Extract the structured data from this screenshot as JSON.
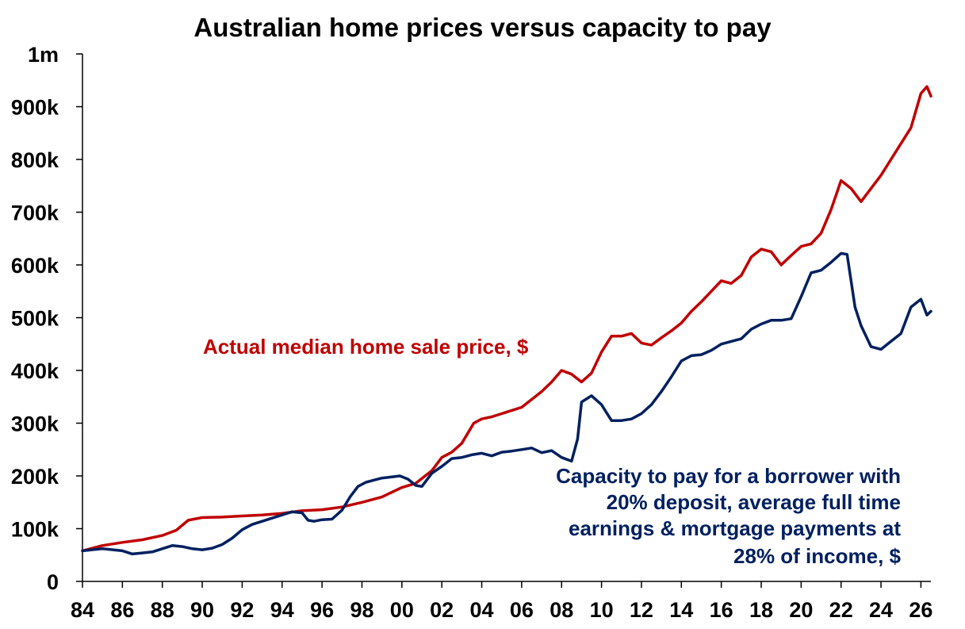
{
  "chart_data": {
    "type": "line",
    "title": "Australian home prices versus capacity to pay",
    "xlabel": "",
    "ylabel": "",
    "xlim": [
      1984,
      2026.5
    ],
    "ylim": [
      0,
      1000000
    ],
    "grid": false,
    "x_tick_labels": [
      "84",
      "86",
      "88",
      "90",
      "92",
      "94",
      "96",
      "98",
      "00",
      "02",
      "04",
      "06",
      "08",
      "10",
      "12",
      "14",
      "16",
      "18",
      "20",
      "22",
      "24",
      "26"
    ],
    "x_tick_values": [
      1984,
      1986,
      1988,
      1990,
      1992,
      1994,
      1996,
      1998,
      2000,
      2002,
      2004,
      2006,
      2008,
      2010,
      2012,
      2014,
      2016,
      2018,
      2020,
      2022,
      2024,
      2026
    ],
    "y_tick_labels": [
      "0",
      "100k",
      "200k",
      "300k",
      "400k",
      "500k",
      "600k",
      "700k",
      "800k",
      "900k",
      "1m"
    ],
    "y_tick_values": [
      0,
      100000,
      200000,
      300000,
      400000,
      500000,
      600000,
      700000,
      800000,
      900000,
      1000000
    ],
    "series": [
      {
        "name": "Actual median home sale price, $",
        "color": "#c00000",
        "points": [
          [
            1984.0,
            58000
          ],
          [
            1985.0,
            68000
          ],
          [
            1986.0,
            74000
          ],
          [
            1987.0,
            79000
          ],
          [
            1988.0,
            87000
          ],
          [
            1988.7,
            97000
          ],
          [
            1989.3,
            116000
          ],
          [
            1990.0,
            121000
          ],
          [
            1991.0,
            122000
          ],
          [
            1992.0,
            124000
          ],
          [
            1993.0,
            126000
          ],
          [
            1994.0,
            129000
          ],
          [
            1995.0,
            134000
          ],
          [
            1996.0,
            136000
          ],
          [
            1997.0,
            141000
          ],
          [
            1998.0,
            150000
          ],
          [
            1999.0,
            160000
          ],
          [
            2000.0,
            178000
          ],
          [
            2000.7,
            186000
          ],
          [
            2001.5,
            210000
          ],
          [
            2002.0,
            235000
          ],
          [
            2002.5,
            245000
          ],
          [
            2003.0,
            262000
          ],
          [
            2003.6,
            300000
          ],
          [
            2004.0,
            308000
          ],
          [
            2004.5,
            312000
          ],
          [
            2005.0,
            318000
          ],
          [
            2006.0,
            330000
          ],
          [
            2007.0,
            360000
          ],
          [
            2007.5,
            378000
          ],
          [
            2008.0,
            400000
          ],
          [
            2008.5,
            393000
          ],
          [
            2009.0,
            378000
          ],
          [
            2009.5,
            395000
          ],
          [
            2010.0,
            435000
          ],
          [
            2010.5,
            465000
          ],
          [
            2011.0,
            465000
          ],
          [
            2011.5,
            470000
          ],
          [
            2012.0,
            452000
          ],
          [
            2012.5,
            448000
          ],
          [
            2013.0,
            462000
          ],
          [
            2013.5,
            475000
          ],
          [
            2014.0,
            490000
          ],
          [
            2014.5,
            512000
          ],
          [
            2015.0,
            530000
          ],
          [
            2015.5,
            550000
          ],
          [
            2016.0,
            570000
          ],
          [
            2016.5,
            565000
          ],
          [
            2017.0,
            580000
          ],
          [
            2017.5,
            615000
          ],
          [
            2018.0,
            630000
          ],
          [
            2018.5,
            625000
          ],
          [
            2019.0,
            600000
          ],
          [
            2019.5,
            618000
          ],
          [
            2020.0,
            635000
          ],
          [
            2020.5,
            640000
          ],
          [
            2021.0,
            660000
          ],
          [
            2021.5,
            705000
          ],
          [
            2022.0,
            760000
          ],
          [
            2022.5,
            745000
          ],
          [
            2023.0,
            720000
          ],
          [
            2023.5,
            745000
          ],
          [
            2024.0,
            770000
          ],
          [
            2024.5,
            800000
          ],
          [
            2025.0,
            830000
          ],
          [
            2025.5,
            860000
          ],
          [
            2026.0,
            925000
          ],
          [
            2026.3,
            938000
          ],
          [
            2026.5,
            920000
          ]
        ]
      },
      {
        "name": "Capacity to pay for a borrower with 20% deposit, average full time earnings & mortgage payments at 28% of income, $",
        "color": "#002060",
        "points": [
          [
            1984.0,
            58000
          ],
          [
            1985.0,
            62000
          ],
          [
            1986.0,
            58000
          ],
          [
            1986.5,
            52000
          ],
          [
            1987.0,
            54000
          ],
          [
            1987.5,
            56000
          ],
          [
            1988.0,
            62000
          ],
          [
            1988.5,
            68000
          ],
          [
            1989.0,
            66000
          ],
          [
            1989.5,
            62000
          ],
          [
            1990.0,
            60000
          ],
          [
            1990.5,
            63000
          ],
          [
            1991.0,
            70000
          ],
          [
            1991.5,
            82000
          ],
          [
            1992.0,
            98000
          ],
          [
            1992.5,
            108000
          ],
          [
            1993.0,
            114000
          ],
          [
            1993.5,
            120000
          ],
          [
            1994.0,
            126000
          ],
          [
            1994.5,
            132000
          ],
          [
            1995.0,
            130000
          ],
          [
            1995.3,
            116000
          ],
          [
            1995.6,
            114000
          ],
          [
            1996.0,
            117000
          ],
          [
            1996.5,
            118000
          ],
          [
            1997.0,
            135000
          ],
          [
            1997.4,
            160000
          ],
          [
            1997.8,
            180000
          ],
          [
            1998.2,
            188000
          ],
          [
            1998.6,
            192000
          ],
          [
            1999.0,
            196000
          ],
          [
            1999.5,
            198000
          ],
          [
            1999.9,
            200000
          ],
          [
            2000.3,
            194000
          ],
          [
            2000.7,
            182000
          ],
          [
            2001.0,
            180000
          ],
          [
            2001.5,
            205000
          ],
          [
            2002.0,
            218000
          ],
          [
            2002.5,
            233000
          ],
          [
            2003.0,
            235000
          ],
          [
            2003.5,
            240000
          ],
          [
            2004.0,
            243000
          ],
          [
            2004.5,
            238000
          ],
          [
            2005.0,
            245000
          ],
          [
            2005.5,
            247000
          ],
          [
            2006.0,
            250000
          ],
          [
            2006.5,
            253000
          ],
          [
            2007.0,
            244000
          ],
          [
            2007.5,
            248000
          ],
          [
            2008.0,
            235000
          ],
          [
            2008.5,
            228000
          ],
          [
            2008.8,
            270000
          ],
          [
            2009.0,
            340000
          ],
          [
            2009.5,
            352000
          ],
          [
            2010.0,
            335000
          ],
          [
            2010.5,
            305000
          ],
          [
            2011.0,
            305000
          ],
          [
            2011.5,
            308000
          ],
          [
            2012.0,
            318000
          ],
          [
            2012.5,
            335000
          ],
          [
            2013.0,
            360000
          ],
          [
            2013.5,
            388000
          ],
          [
            2014.0,
            418000
          ],
          [
            2014.5,
            428000
          ],
          [
            2015.0,
            430000
          ],
          [
            2015.5,
            438000
          ],
          [
            2016.0,
            450000
          ],
          [
            2016.5,
            455000
          ],
          [
            2017.0,
            460000
          ],
          [
            2017.5,
            478000
          ],
          [
            2018.0,
            488000
          ],
          [
            2018.5,
            495000
          ],
          [
            2019.0,
            495000
          ],
          [
            2019.5,
            498000
          ],
          [
            2020.0,
            540000
          ],
          [
            2020.5,
            585000
          ],
          [
            2021.0,
            590000
          ],
          [
            2021.5,
            605000
          ],
          [
            2022.0,
            622000
          ],
          [
            2022.3,
            620000
          ],
          [
            2022.7,
            520000
          ],
          [
            2023.0,
            485000
          ],
          [
            2023.5,
            445000
          ],
          [
            2024.0,
            440000
          ],
          [
            2024.5,
            455000
          ],
          [
            2025.0,
            470000
          ],
          [
            2025.5,
            520000
          ],
          [
            2026.0,
            535000
          ],
          [
            2026.3,
            505000
          ],
          [
            2026.5,
            512000
          ]
        ]
      }
    ]
  },
  "annotations": {
    "price_label": "Actual median home sale price, $",
    "capacity_label_lines": [
      "Capacity to pay for a borrower with",
      "20% deposit, average full time",
      "earnings & mortgage payments at",
      "28% of income, $"
    ]
  }
}
